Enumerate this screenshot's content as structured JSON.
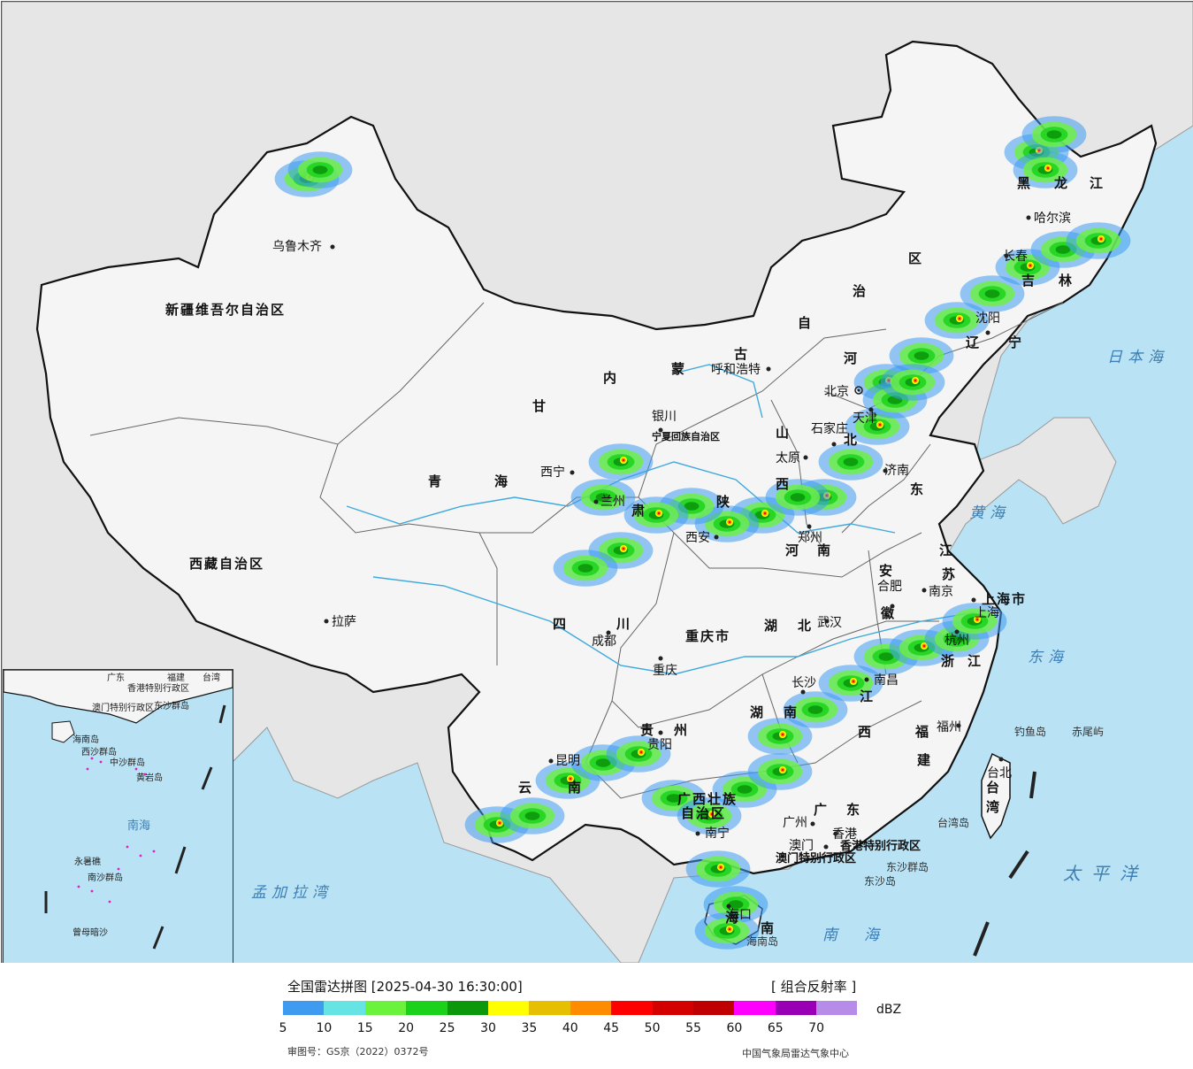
{
  "title": "全国雷达拼图 [2025-04-30 16:30:00]",
  "product": "[ 组合反射率 ]",
  "unit": "dBZ",
  "approval_number": "审图号：GS京（2022）0372号",
  "agency": "中国气象局雷达气象中心",
  "colors": {
    "sea": "#b9e3f5",
    "land_china": "#f4f4f4",
    "land_foreign": "#e6e6e6",
    "border": "#111111"
  },
  "legend": {
    "ticks": [
      "5",
      "10",
      "15",
      "20",
      "25",
      "30",
      "35",
      "40",
      "45",
      "50",
      "55",
      "60",
      "65",
      "70"
    ],
    "colors": [
      "#3e9bf0",
      "#66e3e3",
      "#6bf23c",
      "#1bd21b",
      "#0b980b",
      "#ffff00",
      "#e6c000",
      "#ff8c00",
      "#ff0000",
      "#d40000",
      "#c00000",
      "#ff00ff",
      "#9900b5",
      "#b68ce8"
    ]
  },
  "provinces": [
    "新疆维吾尔自治区",
    "西藏自治区",
    "青",
    "海",
    "甘",
    "肃",
    "内",
    "蒙",
    "古",
    "自",
    "治",
    "区",
    "黑",
    "龙",
    "江",
    "吉",
    "林",
    "辽",
    "宁",
    "河",
    "北",
    "山",
    "西",
    "东",
    "陕",
    "河",
    "南",
    "四",
    "川",
    "重庆市",
    "湖",
    "北",
    "湖",
    "南",
    "贵",
    "州",
    "云",
    "南",
    "广西壮族",
    "自治区",
    "广",
    "东",
    "江",
    "西",
    "福",
    "建",
    "浙",
    "江",
    "安",
    "徽",
    "江",
    "苏",
    "上海市",
    "台",
    "湾",
    "宁夏回族自治区",
    "海",
    "南",
    "香港特别行政区",
    "澳门特别行政区"
  ],
  "cities": [
    "乌鲁木齐",
    "拉萨",
    "西宁",
    "兰州",
    "银川",
    "呼和浩特",
    "北京",
    "天津",
    "石家庄",
    "太原",
    "济南",
    "郑州",
    "西安",
    "成都",
    "重庆",
    "武汉",
    "合肥",
    "南京",
    "上海",
    "杭州",
    "南昌",
    "长沙",
    "贵阳",
    "昆明",
    "南宁",
    "广州",
    "香港",
    "澳门",
    "福州",
    "台北",
    "海口",
    "沈阳",
    "长春",
    "哈尔滨"
  ],
  "seas": [
    "日本海",
    "黄海",
    "东海",
    "太平洋",
    "南海",
    "孟加拉湾"
  ],
  "islands": [
    "钓鱼岛",
    "赤尾屿",
    "台湾岛",
    "东沙群岛",
    "东沙岛",
    "海南岛"
  ],
  "inset_labels": [
    "广东",
    "福建",
    "台湾",
    "香港特别行政区",
    "澳门特别行政区",
    "东沙群岛",
    "海南岛",
    "西沙群岛",
    "中沙群岛",
    "南海",
    "黄岩岛",
    "永暑礁",
    "南沙群岛",
    "曾母暗沙"
  ]
}
